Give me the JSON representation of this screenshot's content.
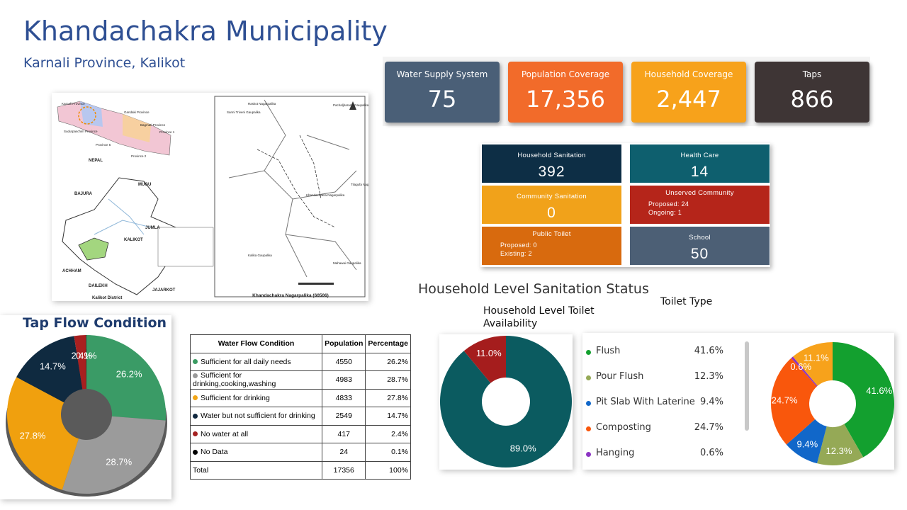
{
  "header": {
    "title": "Khandachakra Municipality",
    "subtitle": "Karnali Province, Kalikot"
  },
  "kpis": [
    {
      "label": "Water Supply System",
      "value": "75",
      "color": "#4a5f77"
    },
    {
      "label": "Population Coverage",
      "value": "17,356",
      "color": "#f26b2a"
    },
    {
      "label": "Household Coverage",
      "value": "2,447",
      "color": "#f7a21b"
    },
    {
      "label": "Taps",
      "value": "866",
      "color": "#3e3535"
    }
  ],
  "sanitation": [
    {
      "label": "Household Sanitation",
      "value": "392",
      "color": "#0d2e45"
    },
    {
      "label": "Health Care",
      "value": "14",
      "color": "#0e5f6e"
    },
    {
      "label": "Community Sanitation",
      "value": "0",
      "color": "#f1a21a"
    },
    {
      "label": "Unserved Community",
      "details": [
        "Proposed: 24",
        "Ongoing: 1"
      ],
      "color": "#b5251a"
    },
    {
      "label": "Public Toilet",
      "details": [
        "Proposed: 0",
        "Existing: 2"
      ],
      "color": "#d86a0e"
    },
    {
      "label": "School",
      "value": "50",
      "color": "#4c5f75"
    }
  ],
  "map": {
    "labels": [
      "NEPAL",
      "MUGU",
      "BAJURA",
      "JUMLA",
      "KALIKOT",
      "ACHHAM",
      "DAILEKH",
      "JAJARKOT",
      "Kalikot District",
      "Khandachakra Nagarpalika (60506)",
      "Raskot Nagarpalika",
      "Sanni Triveni Gaupalika",
      "Pachaljharana Gaupalika",
      "Tilagufa Nagarpalika",
      "Khandachakra Nagarpalika",
      "Kalika Gaupalika",
      "Mahawai Gaupalika",
      "Karnali Province",
      "Gandaki Province",
      "Sudurpaschim Province",
      "Bagmati Province",
      "Province 1",
      "Province 2",
      "Province 5"
    ]
  },
  "tap_flow_chart": {
    "type": "pie",
    "title": "Tap Flow Condition",
    "values": [
      26.2,
      28.7,
      27.8,
      14.7,
      2.4,
      0.1
    ],
    "value_labels": [
      "26.2%",
      "28.7%",
      "27.8%",
      "14.7%",
      "2.4%",
      "0.1%"
    ],
    "colors": [
      "#3a9b66",
      "#9b9b9b",
      "#f0a00e",
      "#0f2a40",
      "#a82020",
      "#111111"
    ]
  },
  "water_flow_table": {
    "columns": [
      "Water Flow Condition",
      "Population",
      "Percentage"
    ],
    "rows": [
      [
        "Sufficient for all daily needs",
        "4550",
        "26.2%"
      ],
      [
        "Sufficient for drinking,cooking,washing",
        "4983",
        "28.7%"
      ],
      [
        "Sufficient for drinking",
        "4833",
        "27.8%"
      ],
      [
        "Water but not sufficient for drinking",
        "2549",
        "14.7%"
      ],
      [
        "No water at all",
        "417",
        "2.4%"
      ],
      [
        "No Data",
        "24",
        "0.1%"
      ],
      [
        "Total",
        "17356",
        "100%"
      ]
    ],
    "bullet_colors": [
      "#3a9b62",
      "#999999",
      "#f2a516",
      "#10283f",
      "#a52222",
      "#000000",
      null
    ]
  },
  "sanitation_status_title": "Household Level Sanitation Status",
  "toilet_availability_chart": {
    "type": "pie",
    "title": "Household Level Toilet Availability",
    "values": [
      89.0,
      11.0
    ],
    "value_labels": [
      "89.0%",
      "11.0%"
    ],
    "colors": [
      "#0b5b60",
      "#a51d1d"
    ]
  },
  "toilet_type_chart": {
    "type": "pie",
    "title": "Toilet Type",
    "categories": [
      "Flush",
      "Pour Flush",
      "Pit Slab With Laterine",
      "Composting",
      "Hanging",
      null
    ],
    "values": [
      41.6,
      12.3,
      9.4,
      24.7,
      0.6,
      11.1
    ],
    "value_labels": [
      "41.6%",
      "12.3%",
      "9.4%",
      "24.7%",
      "0.6%",
      "11.1%"
    ],
    "colors": [
      "#13a02f",
      "#95a956",
      "#1167c9",
      "#f9570c",
      "#8c34c3",
      "#f7a21b"
    ]
  }
}
